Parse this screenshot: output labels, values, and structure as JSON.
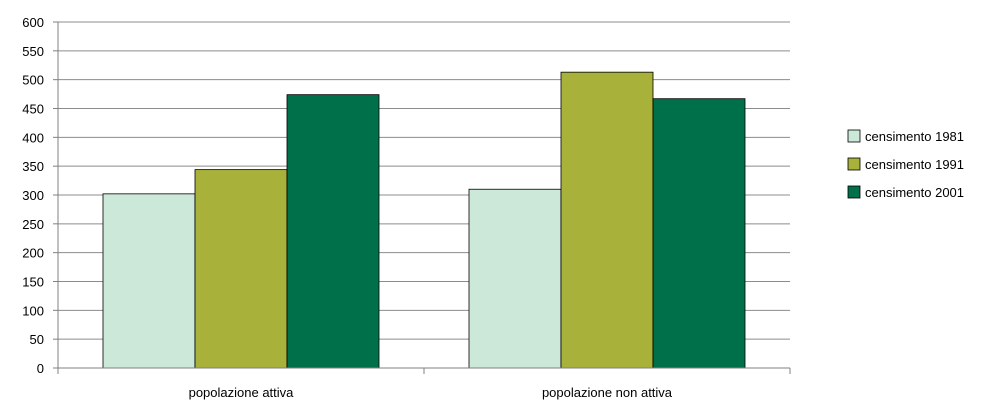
{
  "chart_data": {
    "type": "bar",
    "categories": [
      "popolazione attiva",
      "popolazione non attiva"
    ],
    "series": [
      {
        "name": "censimento 1981",
        "values": [
          302,
          310
        ],
        "color": "#cce8d8"
      },
      {
        "name": "censimento 1991",
        "values": [
          344,
          513
        ],
        "color": "#a8b13a"
      },
      {
        "name": "censimento 2001",
        "values": [
          474,
          467
        ],
        "color": "#00704a"
      }
    ],
    "ylim": [
      0,
      600
    ],
    "yticks": [
      "0",
      "50",
      "100",
      "150",
      "200",
      "250",
      "300",
      "350",
      "400",
      "450",
      "500",
      "550",
      "600"
    ],
    "grid": true,
    "legend_position": "right"
  }
}
